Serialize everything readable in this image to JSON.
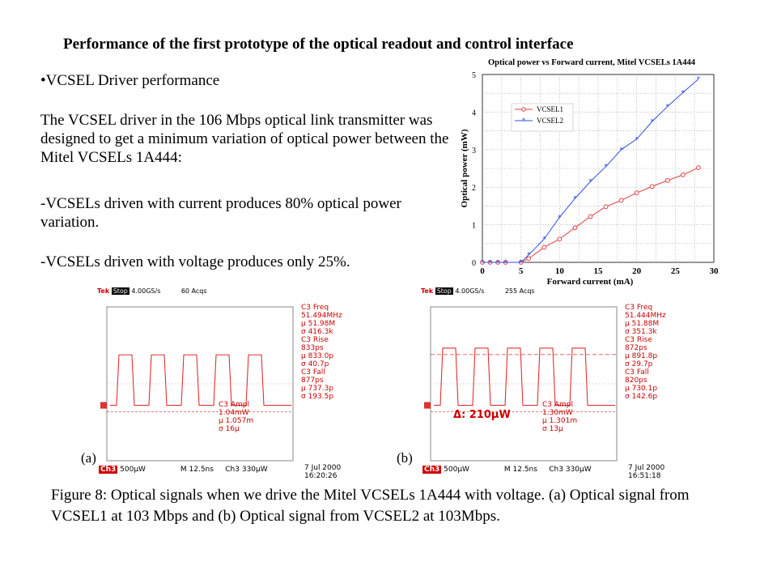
{
  "slide": {
    "title": "Performance of the first prototype of the optical readout and control interface",
    "bullet": "•VCSEL Driver performance",
    "p1": "The VCSEL driver in the 106 Mbps optical link transmitter was designed to get a minimum variation of optical power between the Mitel VCSELs 1A444:",
    "p2": "-VCSELs driven with current produces 80% optical power variation.",
    "p3": "-VCSELs driven with voltage produces only 25%.",
    "label_a": "(a)",
    "label_b": "(b)",
    "caption": "Figure 8: Optical signals when we drive the Mitel VCSELs 1A444 with voltage. (a) Optical signal from VCSEL1 at 103 Mbps and (b) Optical signal from VCSEL2 at 103Mbps."
  },
  "chart_data": {
    "type": "line",
    "title": "Optical power vs Forward current, Mitel VCSELs 1A444",
    "xlabel": "Forward current (mA)",
    "ylabel": "Optical power (mW)",
    "xlim": [
      0,
      30
    ],
    "ylim": [
      0,
      5
    ],
    "xticks": [
      0,
      5,
      10,
      15,
      20,
      25,
      30
    ],
    "yticks": [
      0,
      1,
      2,
      3,
      4,
      5
    ],
    "grid": true,
    "legend": "upper-left",
    "series": [
      {
        "name": "VCSEL1",
        "color": "#e04040",
        "marker": "circle",
        "x": [
          0,
          1,
          2,
          3,
          5,
          6,
          8,
          10,
          12,
          14,
          16,
          18,
          20,
          22,
          24,
          26,
          28
        ],
        "y": [
          0,
          0,
          0,
          0,
          0,
          0.1,
          0.4,
          0.62,
          0.92,
          1.22,
          1.48,
          1.65,
          1.85,
          2.02,
          2.18,
          2.33,
          2.52
        ]
      },
      {
        "name": "VCSEL2",
        "color": "#3050e0",
        "marker": "star",
        "x": [
          0,
          1,
          2,
          3,
          5,
          6,
          8,
          10,
          12,
          14,
          16,
          18,
          20,
          22,
          24,
          26,
          28
        ],
        "y": [
          0,
          0,
          0,
          0,
          0,
          0.2,
          0.62,
          1.2,
          1.7,
          2.15,
          2.55,
          3.0,
          3.28,
          3.75,
          4.15,
          4.52,
          4.88
        ]
      }
    ]
  },
  "scopes": [
    {
      "header": {
        "tek": "Tek",
        "stop": "Stop",
        "rate": "4.00GS/s",
        "acqs": "60 Acqs"
      },
      "measurements": "C3 Freq\n51.494MHz\nμ 51.98M\nσ 416.3k\nC3 Rise\n833ps\nμ 833.0p\nσ 40.7p\nC3 Fall\n877ps\nμ 737.3p\nσ 193.5p",
      "ampl": "C3 Ampl\n1.04mW\nμ 1.057m\nσ 16μ",
      "ch": "Ch3",
      "volts": "500μW",
      "time": "M 12.5ns",
      "ch3b": "Ch3",
      "trig": "330μW",
      "date": "7 Jul 2000",
      "clock": "16:20:26",
      "delta": "",
      "fill": 0.72
    },
    {
      "header": {
        "tek": "Tek",
        "stop": "Stop",
        "rate": "4.00GS/s",
        "acqs": "255 Acqs"
      },
      "measurements": "C3 Freq\n51.444MHz\nμ 51.88M\nσ 351.3k\nC3 Rise\n872ps\nμ 891.8p\nσ 29.7p\nC3 Fall\n820ps\nμ 730.1p\nσ 142.6p",
      "ampl": "C3 Ampl\n1.30mW\nμ 1.301m\nσ 13μ",
      "ch": "Ch3",
      "volts": "500μW",
      "time": "M 12.5ns",
      "ch3b": "Ch3",
      "trig": "330μW",
      "date": "7 Jul 2000",
      "clock": "16:51:18",
      "delta": "Δ: 210μW",
      "fill": 0.8
    }
  ]
}
